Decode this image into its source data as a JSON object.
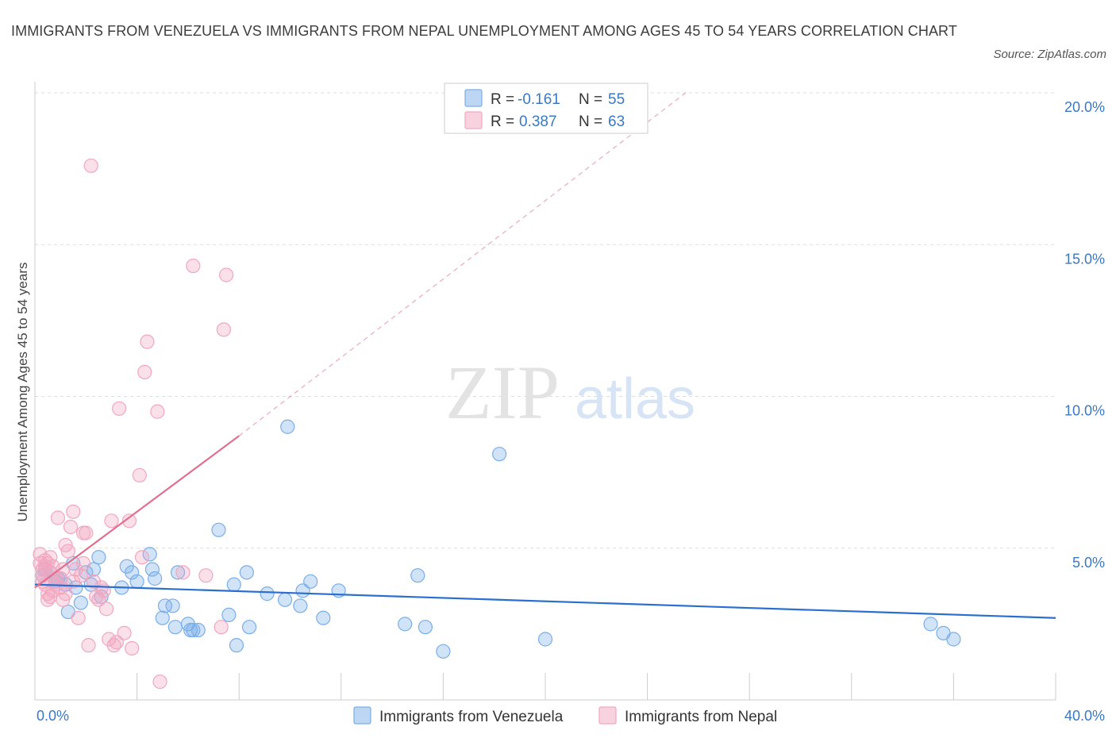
{
  "title": "IMMIGRANTS FROM VENEZUELA VS IMMIGRANTS FROM NEPAL UNEMPLOYMENT AMONG AGES 45 TO 54 YEARS CORRELATION CHART",
  "source": "Source: ZipAtlas.com",
  "watermark": {
    "zip": "ZIP",
    "atlas": "atlas"
  },
  "stats": [
    {
      "r_label": "R =",
      "r_value": "-0.161",
      "n_label": "N =",
      "n_value": "55",
      "color": "#7aaee8"
    },
    {
      "r_label": "R =",
      "r_value": "0.387",
      "n_label": "N =",
      "n_value": "63",
      "color": "#f2a7bf"
    }
  ],
  "chart_data": {
    "type": "scatter",
    "ylabel": "Unemployment Among Ages 45 to 54 years",
    "xlabel": "",
    "xlim": [
      0,
      40
    ],
    "ylim": [
      0,
      20
    ],
    "x_ticks": [
      "0.0%",
      "40.0%"
    ],
    "y_ticks": [
      {
        "value": 5,
        "label": "5.0%"
      },
      {
        "value": 10,
        "label": "10.0%"
      },
      {
        "value": 15,
        "label": "15.0%"
      },
      {
        "value": 20,
        "label": "20.0%"
      }
    ],
    "grid": true,
    "legend_position": "bottom",
    "series": [
      {
        "name": "Immigrants from Venezuela",
        "color": "#7aaee8",
        "trend": {
          "x": [
            0,
            40
          ],
          "y": [
            3.8,
            2.7
          ],
          "style": "solid",
          "color": "#2a6fcf"
        },
        "points": [
          [
            0.3,
            4.1
          ],
          [
            0.4,
            4.3
          ],
          [
            0.6,
            4.2
          ],
          [
            0.8,
            3.9
          ],
          [
            1.0,
            4.0
          ],
          [
            1.2,
            3.8
          ],
          [
            1.3,
            2.9
          ],
          [
            1.5,
            4.5
          ],
          [
            1.6,
            3.7
          ],
          [
            1.8,
            3.2
          ],
          [
            2.0,
            4.2
          ],
          [
            2.2,
            3.8
          ],
          [
            2.3,
            4.3
          ],
          [
            2.5,
            4.7
          ],
          [
            2.6,
            3.4
          ],
          [
            3.4,
            3.7
          ],
          [
            3.6,
            4.4
          ],
          [
            3.8,
            4.2
          ],
          [
            4.0,
            3.9
          ],
          [
            4.5,
            4.8
          ],
          [
            4.7,
            4.0
          ],
          [
            4.6,
            4.3
          ],
          [
            5.0,
            2.7
          ],
          [
            5.6,
            4.2
          ],
          [
            5.1,
            3.1
          ],
          [
            5.4,
            3.1
          ],
          [
            5.5,
            2.4
          ],
          [
            6.0,
            2.5
          ],
          [
            6.1,
            2.3
          ],
          [
            6.2,
            2.3
          ],
          [
            6.4,
            2.3
          ],
          [
            7.2,
            5.6
          ],
          [
            7.8,
            3.8
          ],
          [
            7.6,
            2.8
          ],
          [
            7.9,
            1.8
          ],
          [
            8.3,
            4.2
          ],
          [
            8.4,
            2.4
          ],
          [
            9.1,
            3.5
          ],
          [
            9.8,
            3.3
          ],
          [
            9.9,
            9.0
          ],
          [
            10.4,
            3.1
          ],
          [
            10.5,
            3.6
          ],
          [
            10.8,
            3.9
          ],
          [
            11.3,
            2.7
          ],
          [
            11.9,
            3.6
          ],
          [
            14.5,
            2.5
          ],
          [
            15.0,
            4.1
          ],
          [
            15.3,
            2.4
          ],
          [
            16.0,
            1.6
          ],
          [
            18.2,
            8.1
          ],
          [
            20.0,
            2.0
          ],
          [
            35.1,
            2.5
          ],
          [
            35.6,
            2.2
          ],
          [
            36.0,
            2.0
          ],
          [
            0.9,
            4.0
          ]
        ]
      },
      {
        "name": "Immigrants from Nepal",
        "color": "#f2a7bf",
        "trend": {
          "x": [
            0,
            8.0
          ],
          "y": [
            3.7,
            8.7
          ],
          "style": "solid",
          "color": "#e0708f",
          "ext_x": [
            8.0,
            25.5
          ],
          "ext_y": [
            8.7,
            20.0
          ]
        },
        "points": [
          [
            0.2,
            4.8
          ],
          [
            0.2,
            4.5
          ],
          [
            0.3,
            4.3
          ],
          [
            0.3,
            3.9
          ],
          [
            0.4,
            3.8
          ],
          [
            0.4,
            4.6
          ],
          [
            0.5,
            3.5
          ],
          [
            0.5,
            3.3
          ],
          [
            0.6,
            4.2
          ],
          [
            0.6,
            4.7
          ],
          [
            0.7,
            3.6
          ],
          [
            0.7,
            4.4
          ],
          [
            0.8,
            3.8
          ],
          [
            0.8,
            4.0
          ],
          [
            0.9,
            6.0
          ],
          [
            1.0,
            4.0
          ],
          [
            1.1,
            4.3
          ],
          [
            1.1,
            3.3
          ],
          [
            1.2,
            5.1
          ],
          [
            1.3,
            4.9
          ],
          [
            1.4,
            5.7
          ],
          [
            1.5,
            6.2
          ],
          [
            1.6,
            4.3
          ],
          [
            1.7,
            2.7
          ],
          [
            1.9,
            4.5
          ],
          [
            1.9,
            5.5
          ],
          [
            2.0,
            5.5
          ],
          [
            2.1,
            1.8
          ],
          [
            2.3,
            3.9
          ],
          [
            2.5,
            3.3
          ],
          [
            2.6,
            3.7
          ],
          [
            2.7,
            3.6
          ],
          [
            2.8,
            3.0
          ],
          [
            2.9,
            2.0
          ],
          [
            3.0,
            5.9
          ],
          [
            3.1,
            1.8
          ],
          [
            3.2,
            1.9
          ],
          [
            3.3,
            9.6
          ],
          [
            3.5,
            2.2
          ],
          [
            3.7,
            5.9
          ],
          [
            3.8,
            1.7
          ],
          [
            4.1,
            7.4
          ],
          [
            4.2,
            4.7
          ],
          [
            4.3,
            10.8
          ],
          [
            4.4,
            11.8
          ],
          [
            4.8,
            9.5
          ],
          [
            4.9,
            0.6
          ],
          [
            5.8,
            4.2
          ],
          [
            6.2,
            14.3
          ],
          [
            6.7,
            4.1
          ],
          [
            7.3,
            2.4
          ],
          [
            7.4,
            12.2
          ],
          [
            7.5,
            14.0
          ],
          [
            2.2,
            17.6
          ],
          [
            0.5,
            4.5
          ],
          [
            1.0,
            3.7
          ],
          [
            1.5,
            3.9
          ],
          [
            0.3,
            4.1
          ],
          [
            0.4,
            4.4
          ],
          [
            0.6,
            3.4
          ],
          [
            1.2,
            3.5
          ],
          [
            2.4,
            3.4
          ],
          [
            1.8,
            4.1
          ]
        ]
      }
    ]
  }
}
